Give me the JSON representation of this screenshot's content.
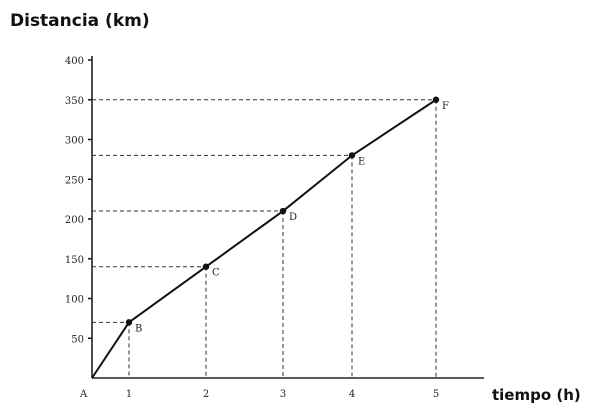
{
  "chart_data": {
    "type": "line",
    "ylabel": "Distancia (km)",
    "xlabel": "tiempo (h)",
    "xlim": [
      0,
      5
    ],
    "ylim": [
      0,
      400
    ],
    "origin_label": "A",
    "x_ticks": [
      "1",
      "2",
      "3",
      "4",
      "5"
    ],
    "y_ticks": [
      "50",
      "100",
      "150",
      "200",
      "250",
      "300",
      "350",
      "400"
    ],
    "grid": false,
    "points": [
      {
        "label": "A",
        "x": 0,
        "y": 0
      },
      {
        "label": "B",
        "x": 1,
        "y": 70
      },
      {
        "label": "C",
        "x": 2,
        "y": 140
      },
      {
        "label": "D",
        "x": 3,
        "y": 210
      },
      {
        "label": "E",
        "x": 4,
        "y": 280
      },
      {
        "label": "F",
        "x": 5,
        "y": 350
      }
    ]
  }
}
